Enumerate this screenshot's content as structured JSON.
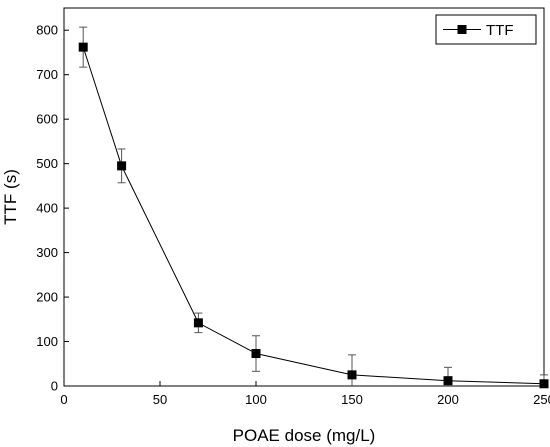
{
  "chart_data": {
    "type": "line",
    "xlabel": "POAE dose (mg/L)",
    "ylabel": "TTF (s)",
    "xlim": [
      0,
      250
    ],
    "ylim": [
      0,
      850
    ],
    "xticks": [
      0,
      50,
      100,
      150,
      200,
      250
    ],
    "xtick_labels": [
      "0",
      "50",
      "100",
      "150",
      "200",
      "250"
    ],
    "yticks": [
      0,
      100,
      200,
      300,
      400,
      500,
      600,
      700,
      800
    ],
    "ytick_labels": [
      "0",
      "100",
      "200",
      "300",
      "400",
      "500",
      "600",
      "700",
      "800"
    ],
    "grid": false,
    "legend_position": "top-right",
    "series": [
      {
        "name": "TTF",
        "marker": "square",
        "color": "#000000",
        "x": [
          10,
          30,
          70,
          100,
          150,
          200,
          250
        ],
        "y": [
          762,
          495,
          142,
          73,
          25,
          12,
          5
        ],
        "error": [
          45,
          38,
          22,
          40,
          45,
          30,
          20
        ]
      }
    ]
  }
}
